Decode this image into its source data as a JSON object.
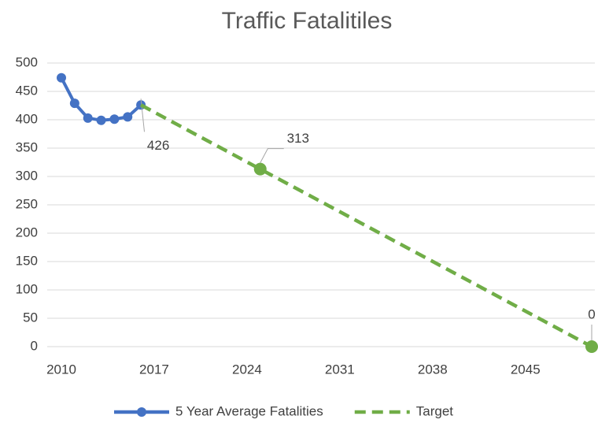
{
  "chart_data": {
    "type": "line",
    "title": "Traffic Fatalitiles",
    "xlim": [
      2010,
      2050
    ],
    "xticks": [
      2010,
      2017,
      2024,
      2031,
      2038,
      2045
    ],
    "ylim": [
      0,
      500
    ],
    "yticks": [
      0,
      50,
      100,
      150,
      200,
      250,
      300,
      350,
      400,
      450,
      500
    ],
    "grid": true,
    "legend": "bottom",
    "series": [
      {
        "name": "5 Year Average Fatalities",
        "color": "#4472c4",
        "dashed": false,
        "x": [
          2010,
          2011,
          2012,
          2013,
          2014,
          2015,
          2016
        ],
        "values": [
          474,
          429,
          403,
          399,
          401,
          405,
          426
        ],
        "markers": [
          true,
          true,
          true,
          true,
          true,
          true,
          true
        ],
        "labeled": [
          6
        ]
      },
      {
        "name": "Target",
        "color": "#70ad47",
        "dashed": true,
        "x": [
          2016,
          2025,
          2050
        ],
        "values": [
          426,
          313,
          0
        ],
        "markers": [
          false,
          true,
          true
        ],
        "labeled": [
          1,
          2
        ]
      }
    ]
  }
}
